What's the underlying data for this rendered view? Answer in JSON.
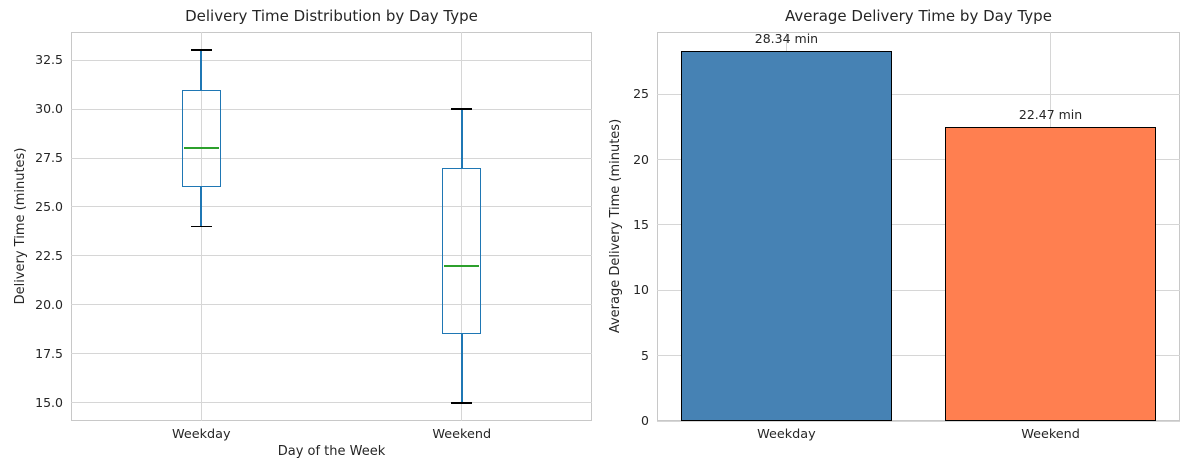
{
  "figure_background": "#ffffff",
  "text_color": "#262626",
  "grid_color": "#d6d6d6",
  "axes_border_color": "#c8c8c8",
  "chart_data": [
    {
      "type": "box",
      "title": "Delivery Time Distribution by Day Type",
      "xlabel": "Day of the Week",
      "ylabel": "Delivery Time (minutes)",
      "categories": [
        "Weekday",
        "Weekend"
      ],
      "series": [
        {
          "name": "Weekday",
          "min": 24,
          "q1": 26,
          "median": 28,
          "q3": 31,
          "max": 33
        },
        {
          "name": "Weekend",
          "min": 15,
          "q1": 18.5,
          "median": 22,
          "q3": 27,
          "max": 30
        }
      ],
      "ylim": [
        14.06,
        33.94
      ],
      "yticks": [
        "15.0",
        "17.5",
        "20.0",
        "22.5",
        "25.0",
        "27.5",
        "30.0",
        "32.5"
      ],
      "grid": true,
      "legend": false,
      "colors": {
        "box": "#1f77b4",
        "whisker": "#1f77b4",
        "median": "#2ca02c",
        "cap": "#000000"
      }
    },
    {
      "type": "bar",
      "title": "Average Delivery Time by Day Type",
      "xlabel": "",
      "ylabel": "Average Delivery Time (minutes)",
      "categories": [
        "Weekday",
        "Weekend"
      ],
      "values": [
        28.34,
        22.47
      ],
      "bar_labels": [
        "28.34 min",
        "22.47 min"
      ],
      "ylim": [
        0,
        29.76
      ],
      "yticks": [
        "0",
        "5",
        "10",
        "15",
        "20",
        "25"
      ],
      "grid": true,
      "legend": false,
      "colors": {
        "bars": [
          "#4682b4",
          "#ff7f50"
        ],
        "edge": "#000000"
      }
    }
  ]
}
